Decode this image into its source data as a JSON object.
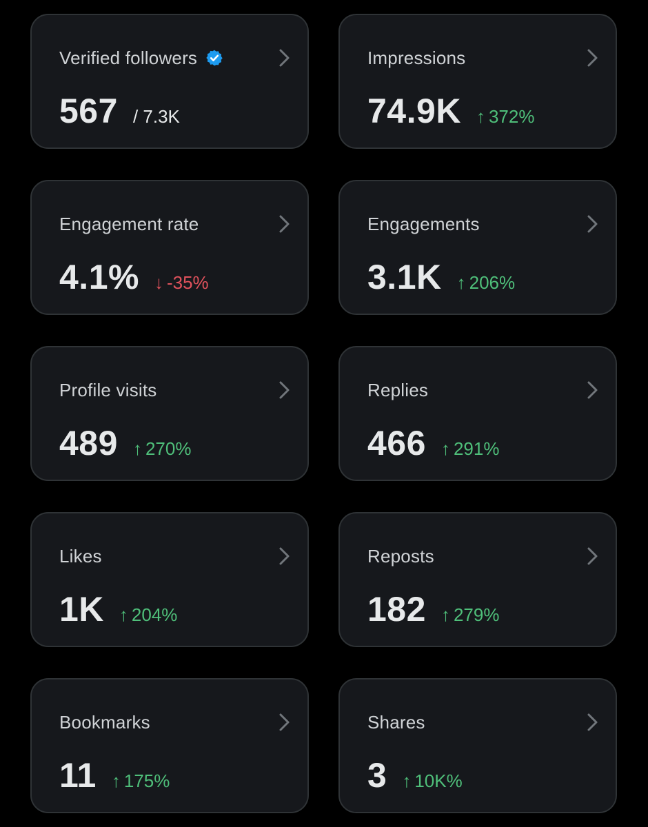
{
  "colors": {
    "background": "#000000",
    "card": "#16181c",
    "card_border": "#2f3336",
    "up": "#4fbf7a",
    "down": "#e0525c",
    "verified": "#1d9bf0"
  },
  "icons": {
    "chevron": "chevron-right-icon",
    "verified": "verified-badge-icon",
    "up": "arrow-up-icon",
    "down": "arrow-down-icon"
  },
  "cards": {
    "verified_followers": {
      "label": "Verified followers",
      "value": "567",
      "total": "/ 7.3K"
    },
    "impressions": {
      "label": "Impressions",
      "value": "74.9K",
      "arrow": "↑",
      "change": "372%"
    },
    "engagement_rate": {
      "label": "Engagement rate",
      "value": "4.1%",
      "arrow": "↓",
      "change": "-35%"
    },
    "engagements": {
      "label": "Engagements",
      "value": "3.1K",
      "arrow": "↑",
      "change": "206%"
    },
    "profile_visits": {
      "label": "Profile visits",
      "value": "489",
      "arrow": "↑",
      "change": "270%"
    },
    "replies": {
      "label": "Replies",
      "value": "466",
      "arrow": "↑",
      "change": "291%"
    },
    "likes": {
      "label": "Likes",
      "value": "1K",
      "arrow": "↑",
      "change": "204%"
    },
    "reposts": {
      "label": "Reposts",
      "value": "182",
      "arrow": "↑",
      "change": "279%"
    },
    "bookmarks": {
      "label": "Bookmarks",
      "value": "11",
      "arrow": "↑",
      "change": "175%"
    },
    "shares": {
      "label": "Shares",
      "value": "3",
      "arrow": "↑",
      "change": "10K%"
    }
  }
}
